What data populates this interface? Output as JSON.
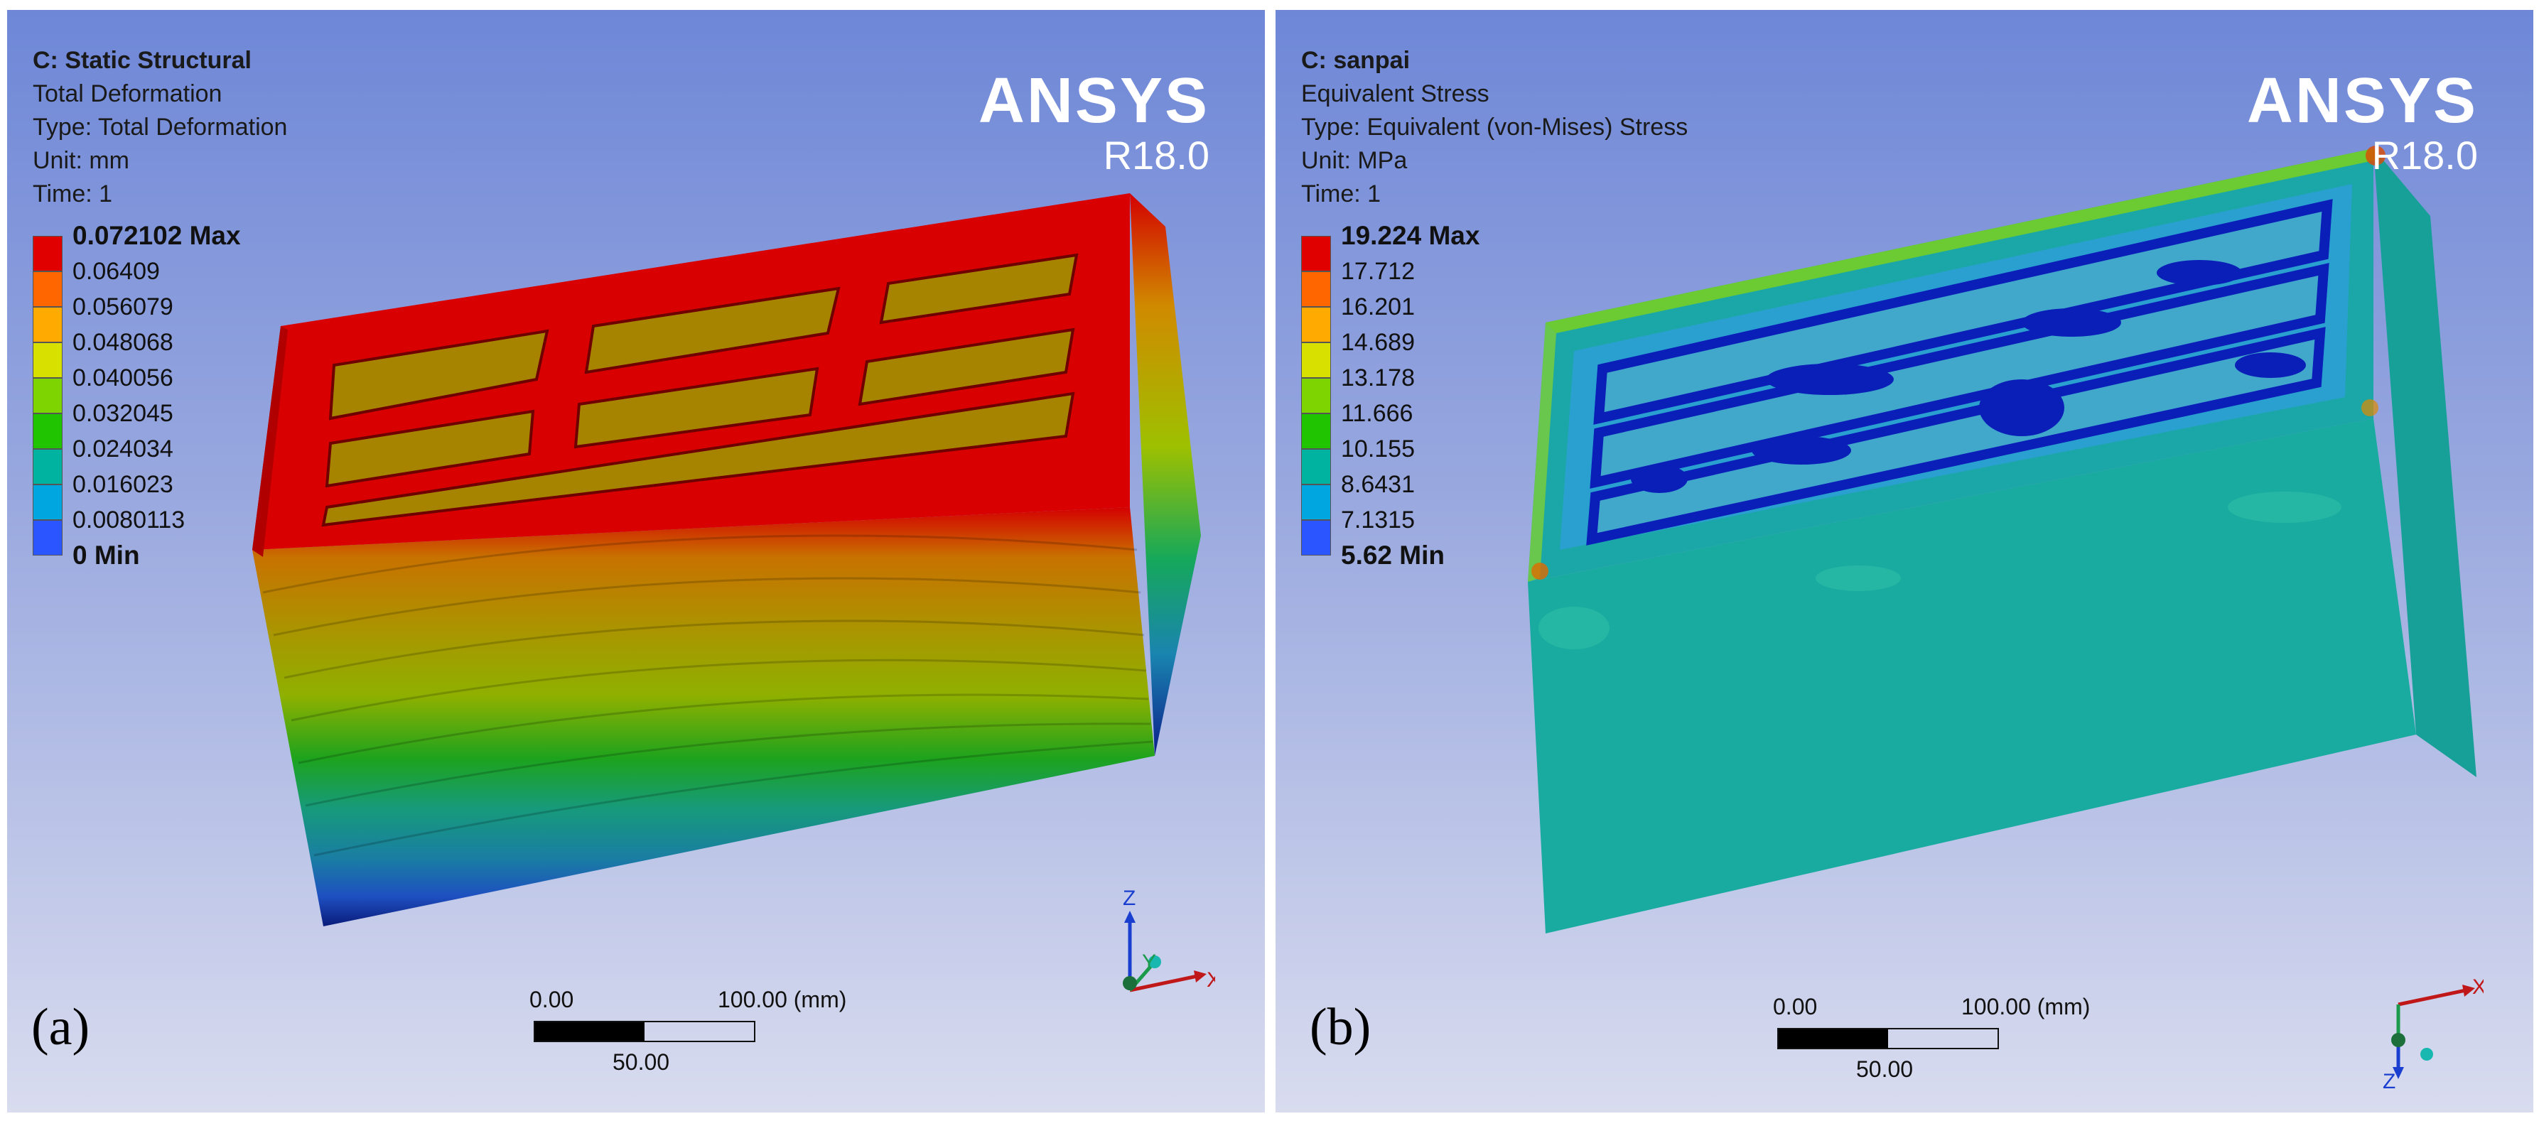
{
  "panel_a": {
    "tag": "(a)",
    "header": [
      "C: Static Structural",
      "Total Deformation",
      "Type: Total Deformation",
      "Unit: mm",
      "Time: 1"
    ],
    "logo": {
      "name": "ANSYS",
      "version": "R18.0"
    },
    "legend": [
      {
        "label": "0.072102 Max",
        "color": "#e00000"
      },
      {
        "label": "0.06409",
        "color": "#ff6600"
      },
      {
        "label": "0.056079",
        "color": "#ffaa00"
      },
      {
        "label": "0.048068",
        "color": "#d8e000"
      },
      {
        "label": "0.040056",
        "color": "#7dd400"
      },
      {
        "label": "0.032045",
        "color": "#20c400"
      },
      {
        "label": "0.024034",
        "color": "#00b3a0"
      },
      {
        "label": "0.016023",
        "color": "#00a6e0"
      },
      {
        "label": "0.0080113",
        "color": "#2a55ff"
      },
      {
        "label": "0 Min",
        "color": "#0018b8"
      }
    ],
    "scale": {
      "start": "0.00",
      "end": "100.00 (mm)",
      "mid": "50.00"
    },
    "triad": {
      "z": "Z",
      "y": "Y",
      "x": "X"
    }
  },
  "panel_b": {
    "tag": "(b)",
    "header": [
      "C: sanpai",
      "Equivalent Stress",
      "Type: Equivalent (von-Mises) Stress",
      "Unit: MPa",
      "Time: 1"
    ],
    "logo": {
      "name": "ANSYS",
      "version": "R18.0"
    },
    "legend": [
      {
        "label": "19.224 Max",
        "color": "#e00000"
      },
      {
        "label": "17.712",
        "color": "#ff6600"
      },
      {
        "label": "16.201",
        "color": "#ffaa00"
      },
      {
        "label": "14.689",
        "color": "#d8e000"
      },
      {
        "label": "13.178",
        "color": "#7dd400"
      },
      {
        "label": "11.666",
        "color": "#20c400"
      },
      {
        "label": "10.155",
        "color": "#00b3a0"
      },
      {
        "label": "8.6431",
        "color": "#00a6e0"
      },
      {
        "label": "7.1315",
        "color": "#2a55ff"
      },
      {
        "label": "5.62 Min",
        "color": "#0018b8"
      }
    ],
    "scale": {
      "start": "0.00",
      "end": "100.00 (mm)",
      "mid": "50.00"
    },
    "triad": {
      "z": "Z",
      "x": "X"
    }
  }
}
